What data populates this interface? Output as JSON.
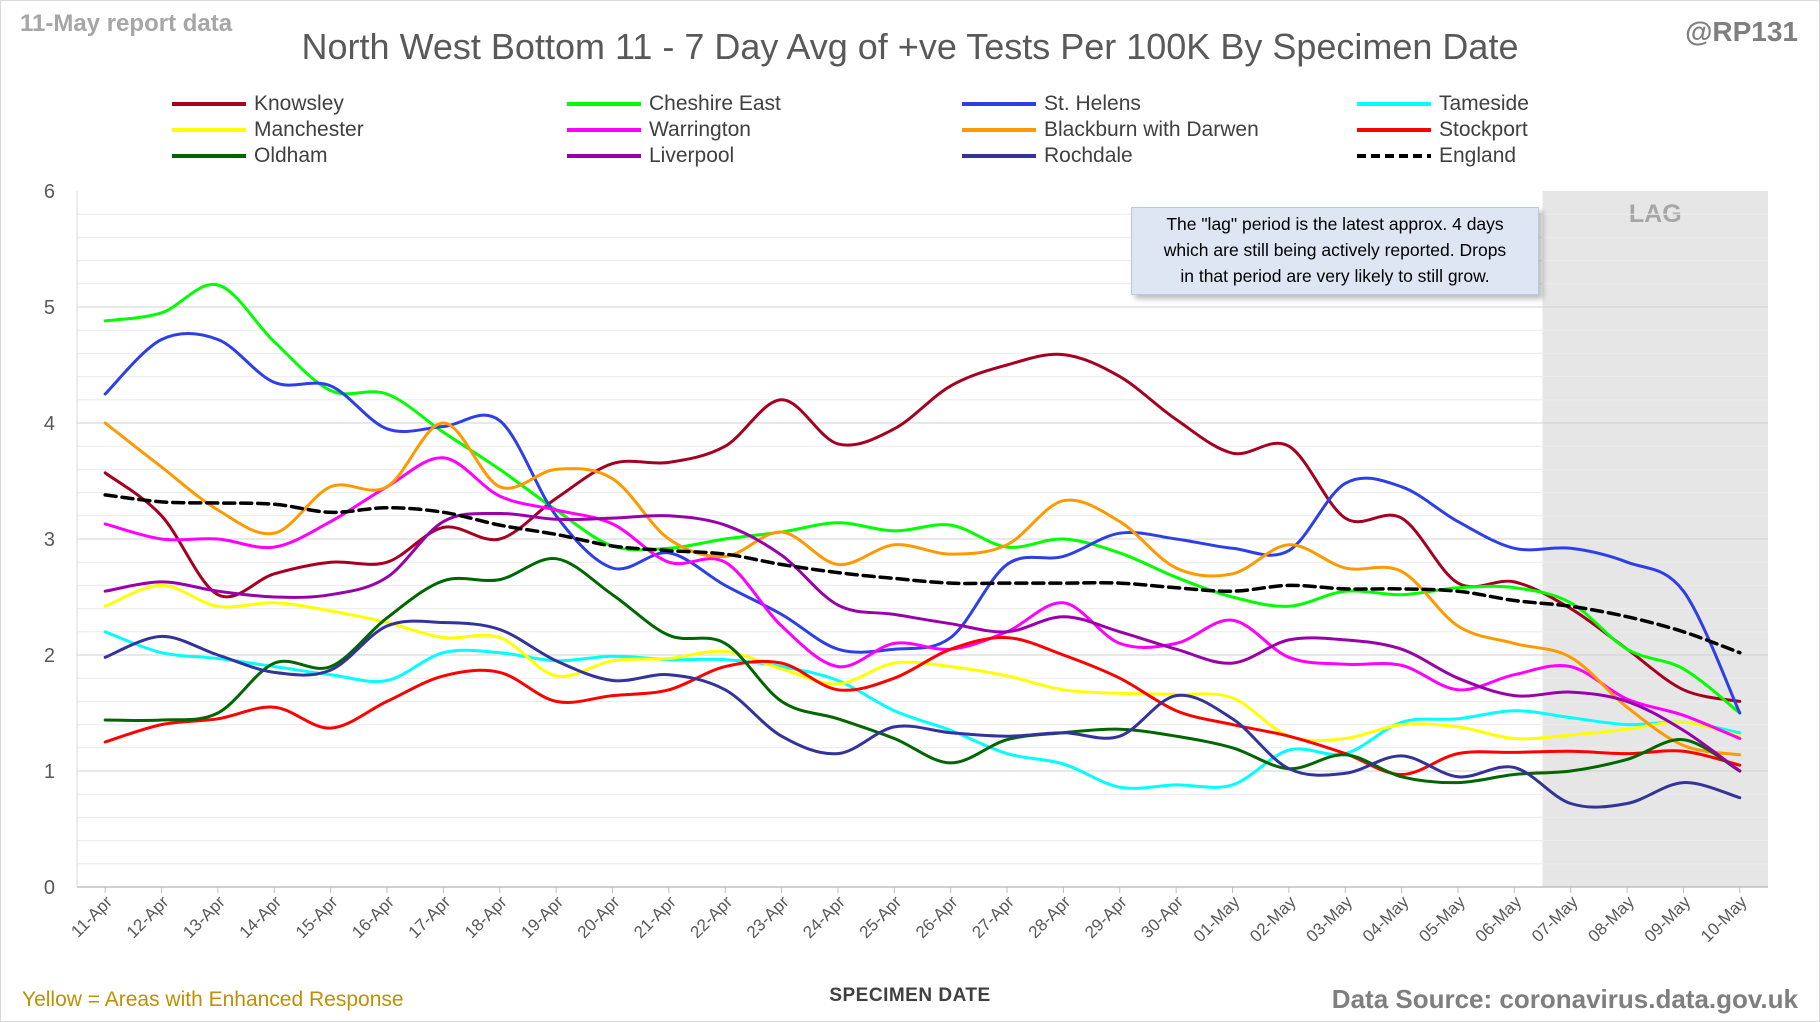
{
  "header": {
    "report_date": "11-May report data",
    "handle": "@RP131",
    "title": "North West Bottom 11 - 7 Day Avg of +ve Tests Per 100K By Specimen Date"
  },
  "footer": {
    "note": "Yellow = Areas with Enhanced Response",
    "source": "Data Source: coronavirus.data.gov.uk"
  },
  "lag": {
    "label": "LAG",
    "note_line1": "The \"lag\" period is the latest approx. 4 days",
    "note_line2": "which are still being actively reported.  Drops",
    "note_line3": "in that period are very likely to still grow.",
    "start_category": "07-May",
    "end_category": "10-May"
  },
  "chart_data": {
    "type": "line",
    "title": "North West Bottom 11 - 7 Day Avg of +ve Tests Per 100K By Specimen Date",
    "xlabel": "SPECIMEN DATE",
    "ylabel": "",
    "ylim": [
      0,
      6
    ],
    "yticks": [
      "0",
      "1",
      "2",
      "3",
      "4",
      "5",
      "6"
    ],
    "grid": "horizontal minor every 0.2",
    "legend_position": "top",
    "categories": [
      "11-Apr",
      "12-Apr",
      "13-Apr",
      "14-Apr",
      "15-Apr",
      "16-Apr",
      "17-Apr",
      "18-Apr",
      "19-Apr",
      "20-Apr",
      "21-Apr",
      "22-Apr",
      "23-Apr",
      "24-Apr",
      "25-Apr",
      "26-Apr",
      "27-Apr",
      "28-Apr",
      "29-Apr",
      "30-Apr",
      "01-May",
      "02-May",
      "03-May",
      "04-May",
      "05-May",
      "06-May",
      "07-May",
      "08-May",
      "09-May",
      "10-May"
    ],
    "series": [
      {
        "name": "Knowsley",
        "color": "#a50021",
        "dash": false,
        "values": [
          3.57,
          3.2,
          2.52,
          2.7,
          2.8,
          2.8,
          3.1,
          3.0,
          3.35,
          3.65,
          3.66,
          3.8,
          4.2,
          3.82,
          3.95,
          4.32,
          4.5,
          4.59,
          4.4,
          4.03,
          3.74,
          3.8,
          3.18,
          3.18,
          2.62,
          2.63,
          2.4,
          2.05,
          1.7,
          1.6
        ]
      },
      {
        "name": "Cheshire East",
        "color": "#00ff00",
        "dash": false,
        "values": [
          4.88,
          4.95,
          5.19,
          4.7,
          4.28,
          4.25,
          3.92,
          3.6,
          3.25,
          2.94,
          2.92,
          3.0,
          3.06,
          3.14,
          3.07,
          3.12,
          2.93,
          3.0,
          2.88,
          2.67,
          2.5,
          2.42,
          2.55,
          2.52,
          2.58,
          2.58,
          2.45,
          2.05,
          1.88,
          1.5
        ]
      },
      {
        "name": "St. Helens",
        "color": "#2e3fe8",
        "dash": false,
        "values": [
          4.25,
          4.72,
          4.72,
          4.35,
          4.32,
          3.95,
          3.97,
          4.02,
          3.2,
          2.75,
          2.88,
          2.6,
          2.35,
          2.05,
          2.05,
          2.15,
          2.78,
          2.85,
          3.05,
          3.0,
          2.92,
          2.9,
          3.48,
          3.45,
          3.15,
          2.92,
          2.92,
          2.8,
          2.55,
          1.5
        ]
      },
      {
        "name": "Tameside",
        "color": "#00ffff",
        "dash": false,
        "values": [
          2.2,
          2.02,
          1.97,
          1.9,
          1.83,
          1.78,
          2.02,
          2.02,
          1.95,
          1.99,
          1.96,
          1.96,
          1.9,
          1.78,
          1.52,
          1.35,
          1.15,
          1.06,
          0.86,
          0.88,
          0.88,
          1.18,
          1.15,
          1.42,
          1.45,
          1.52,
          1.46,
          1.4,
          1.42,
          1.33
        ]
      },
      {
        "name": "Manchester",
        "color": "#ffff00",
        "dash": false,
        "values": [
          2.42,
          2.6,
          2.42,
          2.45,
          2.38,
          2.28,
          2.15,
          2.15,
          1.82,
          1.95,
          1.97,
          2.03,
          1.88,
          1.75,
          1.93,
          1.9,
          1.82,
          1.7,
          1.67,
          1.66,
          1.63,
          1.3,
          1.28,
          1.4,
          1.38,
          1.28,
          1.31,
          1.36,
          1.42,
          1.3
        ]
      },
      {
        "name": "Warrington",
        "color": "#ff00ff",
        "dash": false,
        "values": [
          3.13,
          3.0,
          3.0,
          2.93,
          3.15,
          3.45,
          3.7,
          3.37,
          3.25,
          3.13,
          2.8,
          2.8,
          2.25,
          1.9,
          2.1,
          2.05,
          2.2,
          2.45,
          2.1,
          2.1,
          2.3,
          1.98,
          1.92,
          1.91,
          1.7,
          1.83,
          1.9,
          1.62,
          1.48,
          1.28
        ]
      },
      {
        "name": "Blackburn with Darwen",
        "color": "#ff9900",
        "dash": false,
        "values": [
          4.0,
          3.62,
          3.25,
          3.05,
          3.45,
          3.45,
          4.0,
          3.45,
          3.6,
          3.52,
          3.0,
          2.85,
          3.06,
          2.78,
          2.95,
          2.87,
          2.95,
          3.33,
          3.15,
          2.75,
          2.7,
          2.95,
          2.75,
          2.72,
          2.25,
          2.1,
          1.98,
          1.55,
          1.22,
          1.14
        ]
      },
      {
        "name": "Stockport",
        "color": "#ff0000",
        "dash": false,
        "values": [
          1.25,
          1.4,
          1.45,
          1.55,
          1.37,
          1.6,
          1.82,
          1.85,
          1.6,
          1.65,
          1.7,
          1.9,
          1.93,
          1.7,
          1.8,
          2.05,
          2.15,
          2.0,
          1.8,
          1.52,
          1.4,
          1.3,
          1.15,
          0.97,
          1.15,
          1.16,
          1.17,
          1.15,
          1.17,
          1.05
        ]
      },
      {
        "name": "Oldham",
        "color": "#006600",
        "dash": false,
        "values": [
          1.44,
          1.44,
          1.5,
          1.93,
          1.9,
          2.32,
          2.64,
          2.65,
          2.83,
          2.52,
          2.17,
          2.1,
          1.6,
          1.45,
          1.28,
          1.07,
          1.27,
          1.33,
          1.36,
          1.3,
          1.2,
          1.02,
          1.14,
          0.95,
          0.9,
          0.97,
          1.0,
          1.1,
          1.27,
          1.0
        ]
      },
      {
        "name": "Liverpool",
        "color": "#9900aa",
        "dash": false,
        "values": [
          2.55,
          2.63,
          2.55,
          2.5,
          2.52,
          2.67,
          3.15,
          3.22,
          3.17,
          3.18,
          3.2,
          3.12,
          2.86,
          2.43,
          2.35,
          2.27,
          2.2,
          2.33,
          2.2,
          2.05,
          1.93,
          2.13,
          2.13,
          2.05,
          1.8,
          1.65,
          1.68,
          1.6,
          1.35,
          1.0
        ]
      },
      {
        "name": "Rochdale",
        "color": "#333399",
        "dash": false,
        "values": [
          1.98,
          2.16,
          2.0,
          1.85,
          1.87,
          2.25,
          2.28,
          2.22,
          1.95,
          1.78,
          1.83,
          1.7,
          1.3,
          1.15,
          1.38,
          1.33,
          1.3,
          1.33,
          1.3,
          1.65,
          1.45,
          1.02,
          0.98,
          1.13,
          0.95,
          1.03,
          0.72,
          0.72,
          0.9,
          0.77
        ]
      },
      {
        "name": "England",
        "color": "#000000",
        "dash": true,
        "values": [
          3.38,
          3.32,
          3.31,
          3.3,
          3.23,
          3.27,
          3.23,
          3.12,
          3.04,
          2.94,
          2.9,
          2.87,
          2.78,
          2.71,
          2.66,
          2.62,
          2.62,
          2.62,
          2.62,
          2.58,
          2.55,
          2.6,
          2.57,
          2.57,
          2.55,
          2.47,
          2.42,
          2.33,
          2.2,
          2.02
        ]
      }
    ]
  }
}
